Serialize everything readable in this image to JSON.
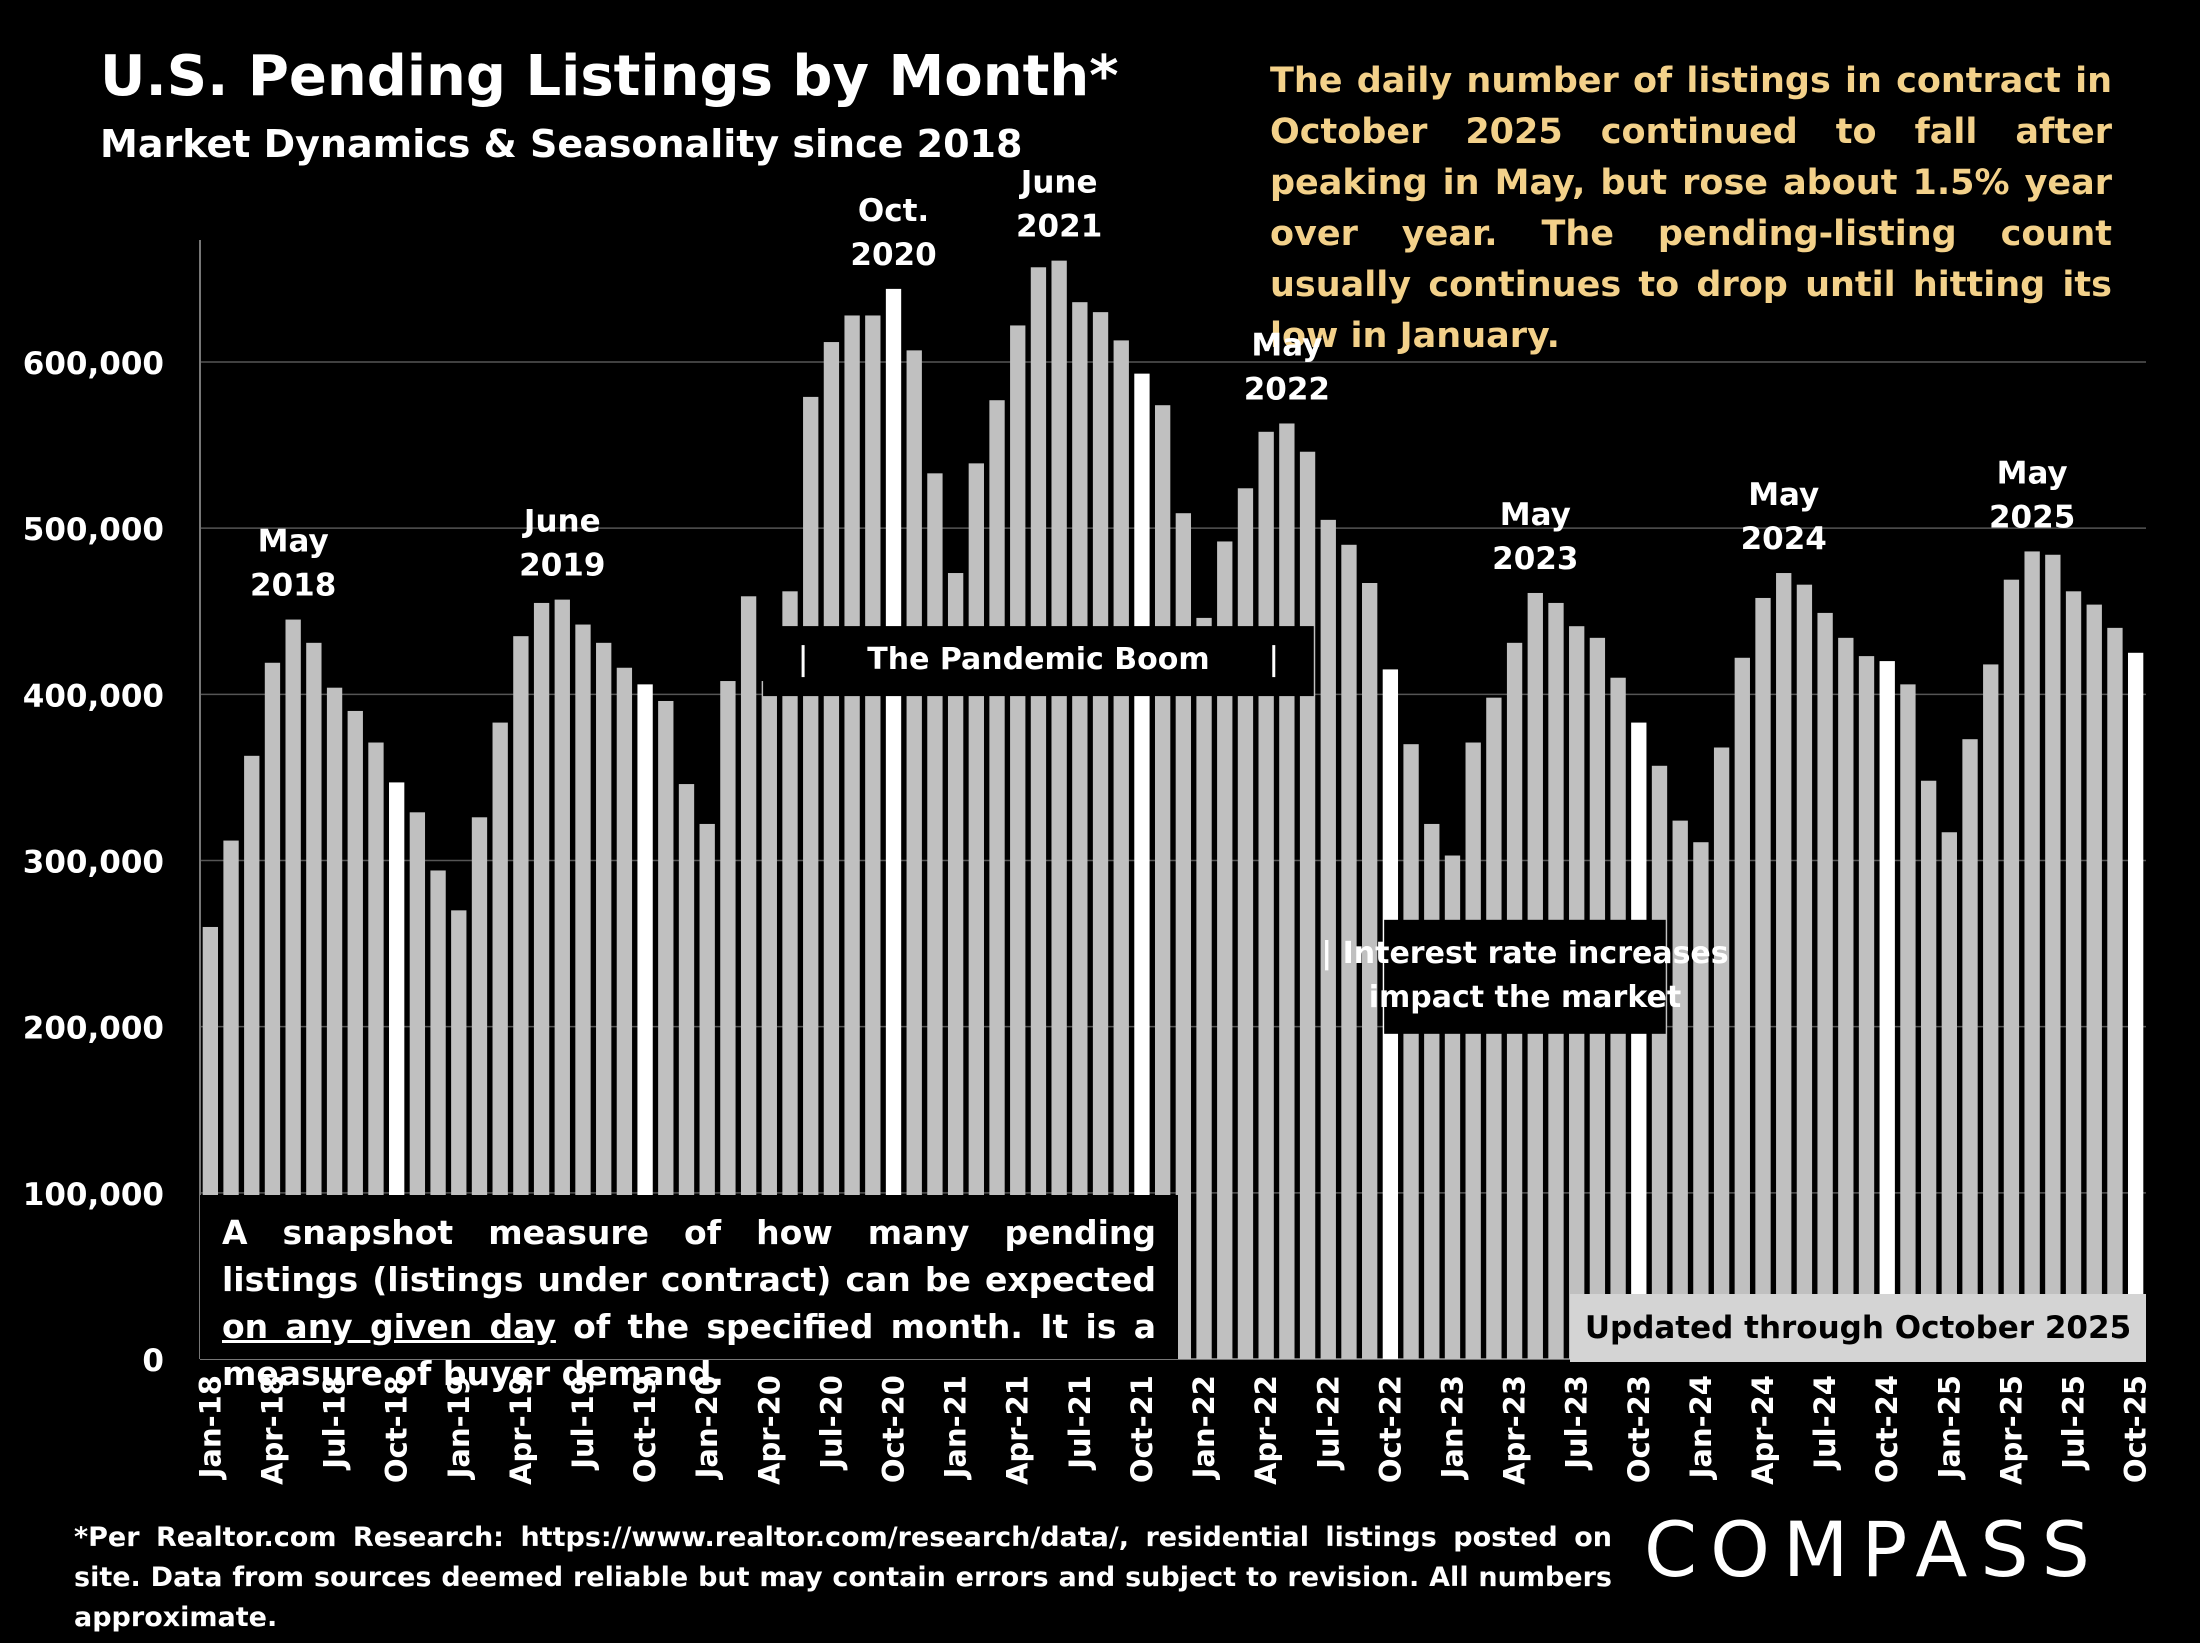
{
  "title": "U.S. Pending Listings by Month*",
  "subtitle": "Market Dynamics & Seasonality since 2018",
  "description": "The daily number of listings in contract in October 2025 continued to fall after peaking in May, but rose about 1.5% year over year. The pending-listing count usually continues to drop until hitting its low in January.",
  "snapshot": {
    "before": "A snapshot measure of how many pending listings (listings under contract) can be expected ",
    "underlined": "on any given day",
    "after": " of the specified month. It is a measure of buyer demand."
  },
  "updated_label": "Updated through October 2025",
  "footnote": "*Per Realtor.com Research: https://www.realtor.com/research/data/, residential listings posted on site. Data from sources deemed reliable but may contain errors and subject to revision. All numbers approximate.",
  "logo_text": "COMPASS",
  "colors": {
    "bar": "#c0c0c0",
    "highlight_bar": "#ffffff",
    "text": "#ffffff",
    "desc_text": "#f3d18a",
    "updated_box": "#d4d4d4"
  },
  "chart_data": {
    "type": "bar",
    "ylim": [
      0,
      700000
    ],
    "yticks": [
      0,
      100000,
      200000,
      300000,
      400000,
      500000,
      600000
    ],
    "ytick_labels": [
      "0",
      "100,000",
      "200,000",
      "300,000",
      "400,000",
      "500,000",
      "600,000"
    ],
    "grid": true,
    "categories": [
      "Jan-18",
      "Feb-18",
      "Mar-18",
      "Apr-18",
      "May-18",
      "Jun-18",
      "Jul-18",
      "Aug-18",
      "Sep-18",
      "Oct-18",
      "Nov-18",
      "Dec-18",
      "Jan-19",
      "Feb-19",
      "Mar-19",
      "Apr-19",
      "May-19",
      "Jun-19",
      "Jul-19",
      "Aug-19",
      "Sep-19",
      "Oct-19",
      "Nov-19",
      "Dec-19",
      "Jan-20",
      "Feb-20",
      "Mar-20",
      "Apr-20",
      "May-20",
      "Jun-20",
      "Jul-20",
      "Aug-20",
      "Sep-20",
      "Oct-20",
      "Nov-20",
      "Dec-20",
      "Jan-21",
      "Feb-21",
      "Mar-21",
      "Apr-21",
      "May-21",
      "Jun-21",
      "Jul-21",
      "Aug-21",
      "Sep-21",
      "Oct-21",
      "Nov-21",
      "Dec-21",
      "Jan-22",
      "Feb-22",
      "Mar-22",
      "Apr-22",
      "May-22",
      "Jun-22",
      "Jul-22",
      "Aug-22",
      "Sep-22",
      "Oct-22",
      "Nov-22",
      "Dec-22",
      "Jan-23",
      "Feb-23",
      "Mar-23",
      "Apr-23",
      "May-23",
      "Jun-23",
      "Jul-23",
      "Aug-23",
      "Sep-23",
      "Oct-23",
      "Nov-23",
      "Dec-23",
      "Jan-24",
      "Feb-24",
      "Mar-24",
      "Apr-24",
      "May-24",
      "Jun-24",
      "Jul-24",
      "Aug-24",
      "Sep-24",
      "Oct-24",
      "Nov-24",
      "Dec-24",
      "Jan-25",
      "Feb-25",
      "Mar-25",
      "Apr-25",
      "May-25",
      "Jun-25",
      "Jul-25",
      "Aug-25",
      "Sep-25",
      "Oct-25"
    ],
    "values": [
      260000,
      312000,
      363000,
      419000,
      445000,
      431000,
      404000,
      390000,
      371000,
      347000,
      329000,
      294000,
      270000,
      326000,
      383000,
      435000,
      455000,
      457000,
      442000,
      431000,
      416000,
      406000,
      396000,
      346000,
      322000,
      408000,
      459000,
      408000,
      462000,
      579000,
      612000,
      628000,
      628000,
      644000,
      607000,
      533000,
      473000,
      539000,
      577000,
      622000,
      657000,
      661000,
      636000,
      630000,
      613000,
      593000,
      574000,
      509000,
      446000,
      492000,
      524000,
      558000,
      563000,
      546000,
      505000,
      490000,
      467000,
      415000,
      370000,
      322000,
      303000,
      371000,
      398000,
      431000,
      461000,
      455000,
      441000,
      434000,
      410000,
      383000,
      357000,
      324000,
      311000,
      368000,
      422000,
      458000,
      473000,
      466000,
      449000,
      434000,
      423000,
      420000,
      406000,
      348000,
      317000,
      373000,
      418000,
      469000,
      486000,
      484000,
      462000,
      454000,
      440000,
      425000
    ],
    "highlight_categories": [
      "Oct-18",
      "Oct-19",
      "Oct-20",
      "Oct-21",
      "Oct-22",
      "Oct-23",
      "Oct-24",
      "Oct-25"
    ],
    "x_tick_labels": [
      "Jan-18",
      "Apr-18",
      "Jul-18",
      "Oct-18",
      "Jan-19",
      "Apr-19",
      "Jul-19",
      "Oct-19",
      "Jan-20",
      "Apr-20",
      "Jul-20",
      "Oct-20",
      "Jan-21",
      "Apr-21",
      "Jul-21",
      "Oct-21",
      "Jan-22",
      "Apr-22",
      "Jul-22",
      "Oct-22",
      "Jan-23",
      "Apr-23",
      "Jul-23",
      "Oct-23",
      "Jan-24",
      "Apr-24",
      "Jul-24",
      "Oct-24",
      "Jan-25",
      "Apr-25",
      "Jul-25",
      "Oct-25"
    ],
    "annotations": [
      {
        "category": "May-18",
        "lines": [
          "May",
          "2018"
        ]
      },
      {
        "category": "Jun-19",
        "lines": [
          "June",
          "2019"
        ]
      },
      {
        "category": "Oct-20",
        "lines": [
          "Oct.",
          "2020"
        ]
      },
      {
        "category": "Jun-21",
        "lines": [
          "June",
          "2021"
        ]
      },
      {
        "category": "May-22",
        "lines": [
          "May",
          "2022"
        ]
      },
      {
        "category": "May-23",
        "lines": [
          "May",
          "2023"
        ]
      },
      {
        "category": "May-24",
        "lines": [
          "May",
          "2024"
        ]
      },
      {
        "category": "May-25",
        "lines": [
          "May",
          "2025"
        ]
      }
    ],
    "period_labels": [
      {
        "text": "The Pandemic Boom",
        "from": "Apr-20",
        "to": "Jun-22",
        "y": 420000
      },
      {
        "lines": [
          "| Interest rate increases",
          "impact the market"
        ],
        "from": "Oct-22",
        "to": "Nov-23",
        "y": 230000
      }
    ]
  }
}
